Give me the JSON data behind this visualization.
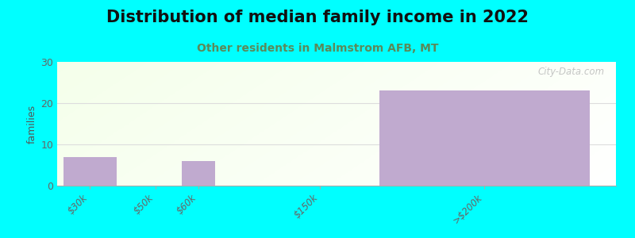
{
  "title": "Distribution of median family income in 2022",
  "subtitle": "Other residents in Malmstrom AFB, MT",
  "categories": [
    "$30k",
    "$50k",
    "$60k",
    "$150k",
    ">$200k"
  ],
  "values": [
    7,
    0,
    6,
    0,
    23
  ],
  "bar_color": "#c0aacf",
  "background_color": "#00ffff",
  "ylabel": "families",
  "ylim": [
    0,
    30
  ],
  "yticks": [
    0,
    10,
    20,
    30
  ],
  "watermark": "City-Data.com",
  "title_fontsize": 15,
  "subtitle_fontsize": 10,
  "subtitle_color": "#5a8a5a",
  "x_positions": [
    0,
    1,
    1.65,
    3.5,
    6.0
  ],
  "bar_widths": [
    0.8,
    0.0,
    0.5,
    0.0,
    3.2
  ]
}
